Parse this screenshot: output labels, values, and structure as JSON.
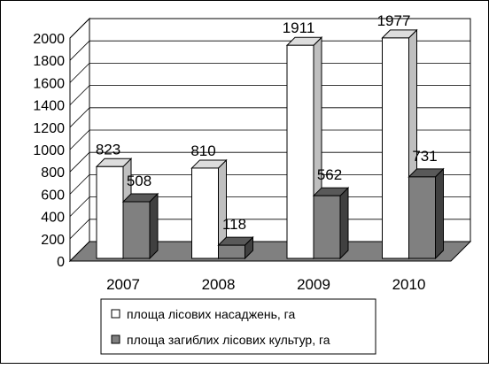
{
  "chart_data": {
    "type": "bar",
    "categories": [
      "2007",
      "2008",
      "2009",
      "2010"
    ],
    "series": [
      {
        "name": "площа лісових насаджень, га",
        "values": [
          823,
          810,
          1911,
          1977
        ],
        "color": "#ffffff"
      },
      {
        "name": "площа загиблих лісових культур, га",
        "values": [
          508,
          118,
          562,
          731
        ],
        "color": "#808080"
      }
    ],
    "yticks": [
      "0",
      "200",
      "400",
      "600",
      "800",
      "1000",
      "1200",
      "1400",
      "1600",
      "1800",
      "2000"
    ],
    "ylim": [
      0,
      2000
    ],
    "grid": true,
    "legend_position": "bottom",
    "three_d": true,
    "floor_color": "#808080"
  }
}
